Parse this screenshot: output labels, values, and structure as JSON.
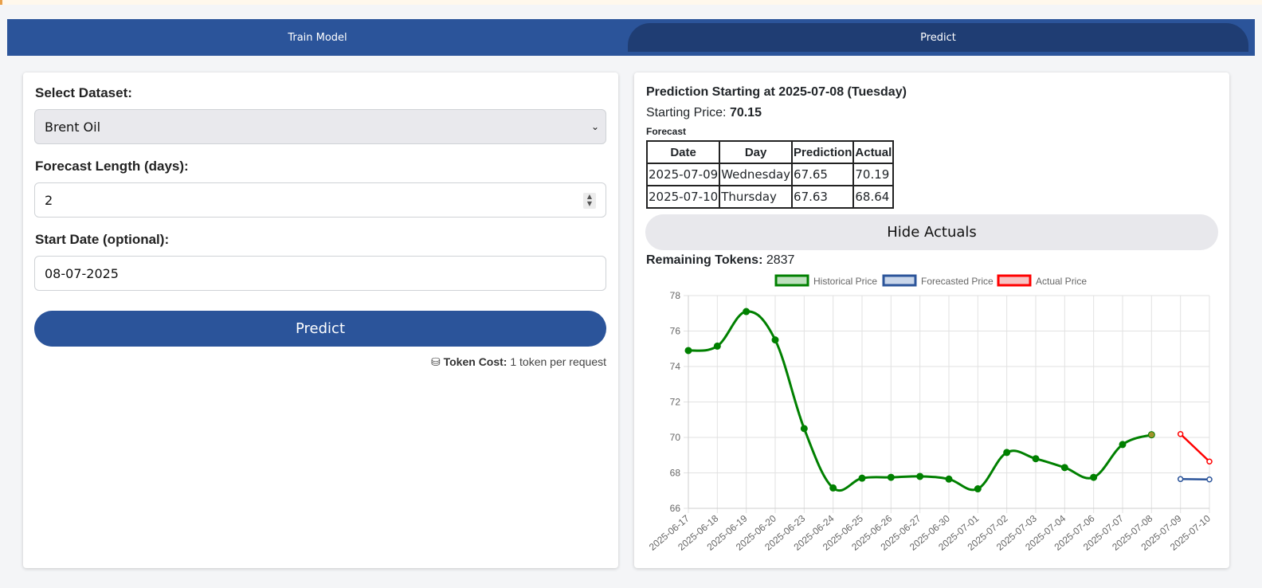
{
  "tabs": [
    {
      "label": "Train Model",
      "active": false
    },
    {
      "label": "Predict",
      "active": true
    }
  ],
  "form": {
    "dataset_label": "Select Dataset:",
    "dataset_value": "Brent Oil",
    "forecast_label": "Forecast Length (days):",
    "forecast_value": "2",
    "start_label": "Start Date (optional):",
    "start_value": "08-07-2025",
    "predict_button": "Predict",
    "cost_label": "Token Cost:",
    "cost_text": "1 token per request"
  },
  "result": {
    "title": "Prediction Starting at 2025-07-08 (Tuesday)",
    "starting_label": "Starting Price:",
    "starting_value": "70.15",
    "forecast_caption": "Forecast",
    "table_headers": [
      "Date",
      "Day",
      "Prediction",
      "Actual"
    ],
    "rows": [
      [
        "2025-07-09",
        "Wednesday",
        "67.65",
        "70.19"
      ],
      [
        "2025-07-10",
        "Thursday",
        "67.63",
        "68.64"
      ]
    ],
    "hide_button": "Hide Actuals",
    "tokens_label": "Remaining Tokens:",
    "tokens_value": "2837"
  },
  "chart_data": {
    "type": "line",
    "categories": [
      "2025-06-17",
      "2025-06-18",
      "2025-06-19",
      "2025-06-20",
      "2025-06-23",
      "2025-06-24",
      "2025-06-25",
      "2025-06-26",
      "2025-06-27",
      "2025-06-30",
      "2025-07-01",
      "2025-07-02",
      "2025-07-03",
      "2025-07-04",
      "2025-07-06",
      "2025-07-07",
      "2025-07-08",
      "2025-07-09",
      "2025-07-10"
    ],
    "ylim": [
      66,
      78
    ],
    "yticks": [
      66,
      68,
      70,
      72,
      74,
      76,
      78
    ],
    "grid": true,
    "legend_position": "top",
    "series": [
      {
        "name": "Historical Price",
        "color": "#008000",
        "fill": "#bde0bd",
        "values": [
          74.9,
          75.15,
          77.1,
          75.5,
          70.5,
          67.15,
          67.7,
          67.75,
          67.8,
          67.65,
          67.1,
          69.15,
          68.8,
          68.3,
          67.75,
          69.6,
          70.15,
          null,
          null
        ]
      },
      {
        "name": "Forecasted Price",
        "color": "#2b549a",
        "fill": "#c9d6ea",
        "values": [
          null,
          null,
          null,
          null,
          null,
          null,
          null,
          null,
          null,
          null,
          null,
          null,
          null,
          null,
          null,
          null,
          null,
          67.65,
          67.63
        ]
      },
      {
        "name": "Actual Price",
        "color": "#ff0000",
        "fill": "#f7c3c3",
        "values": [
          null,
          null,
          null,
          null,
          null,
          null,
          null,
          null,
          null,
          null,
          null,
          null,
          null,
          null,
          null,
          null,
          null,
          70.19,
          68.64
        ]
      }
    ]
  }
}
